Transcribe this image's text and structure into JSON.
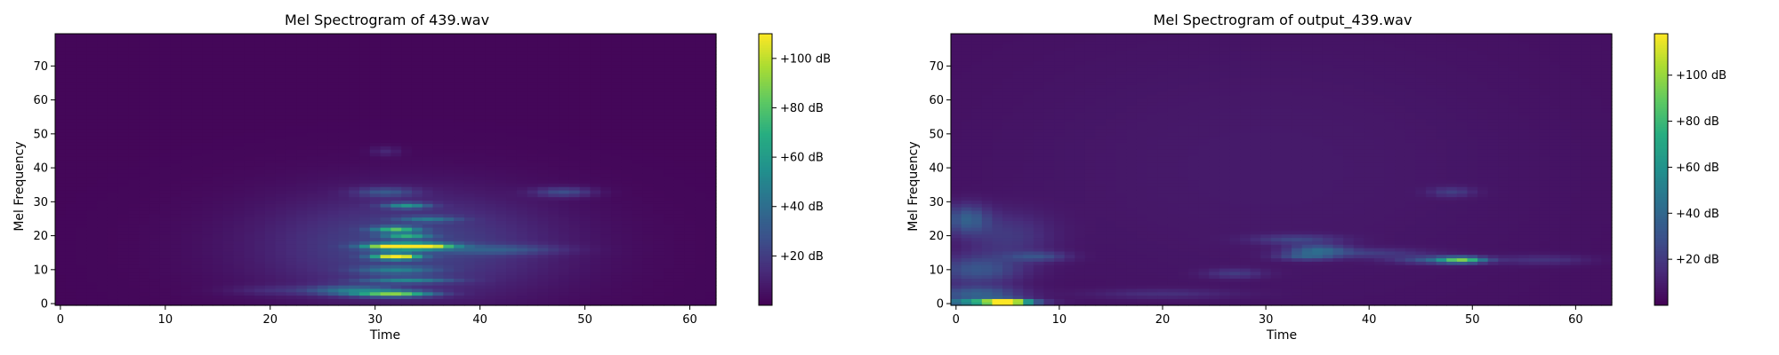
{
  "chart_data": [
    {
      "type": "heatmap",
      "title": "Mel Spectrogram of 439.wav",
      "xlabel": "Time",
      "ylabel": "Mel Frequency",
      "xlim": [
        -0.5,
        62.5
      ],
      "ylim": [
        -0.5,
        79.5
      ],
      "xticks": [
        0,
        10,
        20,
        30,
        40,
        50,
        60
      ],
      "yticks": [
        0,
        10,
        20,
        30,
        40,
        50,
        60,
        70
      ],
      "n_time": 63,
      "n_mel": 80,
      "colormap": "viridis",
      "colorbar": {
        "range": [
          0,
          110
        ],
        "ticks": [
          20,
          40,
          60,
          80,
          100
        ],
        "tick_labels": [
          "+20 dB",
          "+40 dB",
          "+60 dB",
          "+80 dB",
          "+100 dB"
        ]
      },
      "background_db": 2,
      "features": [
        {
          "t": 33,
          "f": 17,
          "st": 10,
          "sf": 11,
          "db": 22
        },
        {
          "t": 32,
          "f": 17,
          "st": 2,
          "sf": 0.6,
          "db": 105
        },
        {
          "t": 32,
          "f": 14,
          "st": 1.5,
          "sf": 0.6,
          "db": 100
        },
        {
          "t": 35,
          "f": 17,
          "st": 2,
          "sf": 0.6,
          "db": 70
        },
        {
          "t": 32,
          "f": 22,
          "st": 1.5,
          "sf": 0.6,
          "db": 60
        },
        {
          "t": 33,
          "f": 20,
          "st": 1.5,
          "sf": 0.6,
          "db": 48
        },
        {
          "t": 32,
          "f": 3,
          "st": 2.5,
          "sf": 0.6,
          "db": 70
        },
        {
          "t": 28,
          "f": 4,
          "st": 3,
          "sf": 1,
          "db": 35
        },
        {
          "t": 33,
          "f": 7,
          "st": 3,
          "sf": 0.6,
          "db": 35
        },
        {
          "t": 32,
          "f": 10,
          "st": 2.5,
          "sf": 0.8,
          "db": 30
        },
        {
          "t": 33,
          "f": 29,
          "st": 1.5,
          "sf": 0.6,
          "db": 45
        },
        {
          "t": 35,
          "f": 25,
          "st": 2,
          "sf": 0.6,
          "db": 28
        },
        {
          "t": 31,
          "f": 33,
          "st": 2,
          "sf": 1,
          "db": 22
        },
        {
          "t": 42,
          "f": 16,
          "st": 4,
          "sf": 1,
          "db": 18
        },
        {
          "t": 48,
          "f": 33,
          "st": 2,
          "sf": 1,
          "db": 22
        },
        {
          "t": 31,
          "f": 45,
          "st": 1,
          "sf": 1,
          "db": 10
        },
        {
          "t": 20,
          "f": 4,
          "st": 3,
          "sf": 1,
          "db": 8
        }
      ]
    },
    {
      "type": "heatmap",
      "title": "Mel Spectrogram of output_439.wav",
      "xlabel": "Time",
      "ylabel": "Mel Frequency",
      "xlim": [
        -0.5,
        63.5
      ],
      "ylim": [
        -0.5,
        79.5
      ],
      "xticks": [
        0,
        10,
        20,
        30,
        40,
        50,
        60
      ],
      "yticks": [
        0,
        10,
        20,
        30,
        40,
        50,
        60,
        70
      ],
      "n_time": 64,
      "n_mel": 80,
      "colormap": "viridis",
      "colorbar": {
        "range": [
          0,
          118
        ],
        "ticks": [
          20,
          40,
          60,
          80,
          100
        ],
        "tick_labels": [
          "+20 dB",
          "+40 dB",
          "+60 dB",
          "+80 dB",
          "+100 dB"
        ]
      },
      "background_db": 5,
      "features": [
        {
          "t": 5,
          "f": 0.5,
          "st": 1.5,
          "sf": 0.6,
          "db": 110
        },
        {
          "t": 3,
          "f": 0.5,
          "st": 3,
          "sf": 0.7,
          "db": 65
        },
        {
          "t": 2,
          "f": 3,
          "st": 3,
          "sf": 1.5,
          "db": 30
        },
        {
          "t": 2,
          "f": 10,
          "st": 3,
          "sf": 3,
          "db": 25
        },
        {
          "t": 1,
          "f": 25,
          "st": 1.5,
          "sf": 3,
          "db": 28
        },
        {
          "t": 5,
          "f": 20,
          "st": 3,
          "sf": 5,
          "db": 14
        },
        {
          "t": 8,
          "f": 14,
          "st": 2,
          "sf": 1,
          "db": 20
        },
        {
          "t": 49,
          "f": 13,
          "st": 1.5,
          "sf": 0.6,
          "db": 65
        },
        {
          "t": 47,
          "f": 13,
          "st": 3,
          "sf": 0.8,
          "db": 28
        },
        {
          "t": 35,
          "f": 16,
          "st": 2,
          "sf": 1,
          "db": 30
        },
        {
          "t": 34,
          "f": 14,
          "st": 2,
          "sf": 0.8,
          "db": 25
        },
        {
          "t": 33,
          "f": 19,
          "st": 3,
          "sf": 1,
          "db": 18
        },
        {
          "t": 27,
          "f": 9,
          "st": 2,
          "sf": 1,
          "db": 14
        },
        {
          "t": 48,
          "f": 33,
          "st": 1.5,
          "sf": 1,
          "db": 15
        },
        {
          "t": 20,
          "f": 3,
          "st": 5,
          "sf": 1,
          "db": 10
        },
        {
          "t": 40,
          "f": 15,
          "st": 4,
          "sf": 1,
          "db": 14
        },
        {
          "t": 57,
          "f": 13,
          "st": 3,
          "sf": 1,
          "db": 12
        },
        {
          "t": 30,
          "f": 40,
          "st": 20,
          "sf": 30,
          "db": 4
        }
      ]
    }
  ]
}
